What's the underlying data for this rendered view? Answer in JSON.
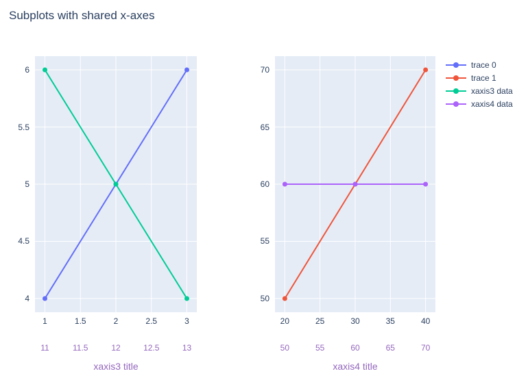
{
  "title": "Subplots with shared x-axes",
  "colors": {
    "ink": "#2a3f5f",
    "secondary_axis": "#9467bd",
    "plot_bg": "#e5ecf6",
    "grid": "#ffffff",
    "page_bg": "#ffffff"
  },
  "legend": {
    "items": [
      {
        "label": "trace 0",
        "color": "#636efa"
      },
      {
        "label": "trace 1",
        "color": "#ef553b"
      },
      {
        "label": "xaxis3 data",
        "color": "#00cc96"
      },
      {
        "label": "xaxis4 data",
        "color": "#ab63fa"
      }
    ]
  },
  "chart_data": [
    {
      "id": "left",
      "type": "line",
      "series": [
        {
          "name": "trace 0",
          "color": "#636efa",
          "xaxis": "primary",
          "x": [
            1,
            2,
            3
          ],
          "y": [
            4,
            5,
            6
          ]
        },
        {
          "name": "xaxis3 data",
          "color": "#00cc96",
          "xaxis": "secondary",
          "x": [
            11,
            12,
            13
          ],
          "y": [
            6,
            5,
            4
          ]
        }
      ],
      "axes": {
        "x_primary": {
          "ticks": [
            "1",
            "1.5",
            "2",
            "2.5",
            "3"
          ],
          "tick_values": [
            1,
            1.5,
            2,
            2.5,
            3
          ],
          "range": [
            0.86,
            3.14
          ]
        },
        "x_secondary": {
          "ticks": [
            "11",
            "11.5",
            "12",
            "12.5",
            "13"
          ],
          "tick_values": [
            11,
            11.5,
            12,
            12.5,
            13
          ],
          "range": [
            10.86,
            13.14
          ],
          "title": "xaxis3 title"
        },
        "y": {
          "ticks": [
            "4",
            "4.5",
            "5",
            "5.5",
            "6"
          ],
          "tick_values": [
            4,
            4.5,
            5,
            5.5,
            6
          ],
          "range": [
            3.88,
            6.12
          ]
        }
      },
      "grid": true,
      "legend_position": "top-right-outside"
    },
    {
      "id": "right",
      "type": "line",
      "series": [
        {
          "name": "trace 1",
          "color": "#ef553b",
          "xaxis": "primary",
          "x": [
            20,
            30,
            40
          ],
          "y": [
            50,
            60,
            70
          ]
        },
        {
          "name": "xaxis4 data",
          "color": "#ab63fa",
          "xaxis": "secondary",
          "x": [
            50,
            60,
            70
          ],
          "y": [
            60,
            60,
            60
          ]
        }
      ],
      "axes": {
        "x_primary": {
          "ticks": [
            "20",
            "25",
            "30",
            "35",
            "40"
          ],
          "tick_values": [
            20,
            25,
            30,
            35,
            40
          ],
          "range": [
            18.6,
            41.4
          ]
        },
        "x_secondary": {
          "ticks": [
            "50",
            "55",
            "60",
            "65",
            "70"
          ],
          "tick_values": [
            50,
            55,
            60,
            65,
            70
          ],
          "range": [
            48.6,
            71.4
          ],
          "title": "xaxis4 title"
        },
        "y": {
          "ticks": [
            "50",
            "55",
            "60",
            "65",
            "70"
          ],
          "tick_values": [
            50,
            55,
            60,
            65,
            70
          ],
          "range": [
            48.8,
            71.2
          ]
        }
      },
      "grid": true,
      "legend_position": "top-right-outside"
    }
  ]
}
